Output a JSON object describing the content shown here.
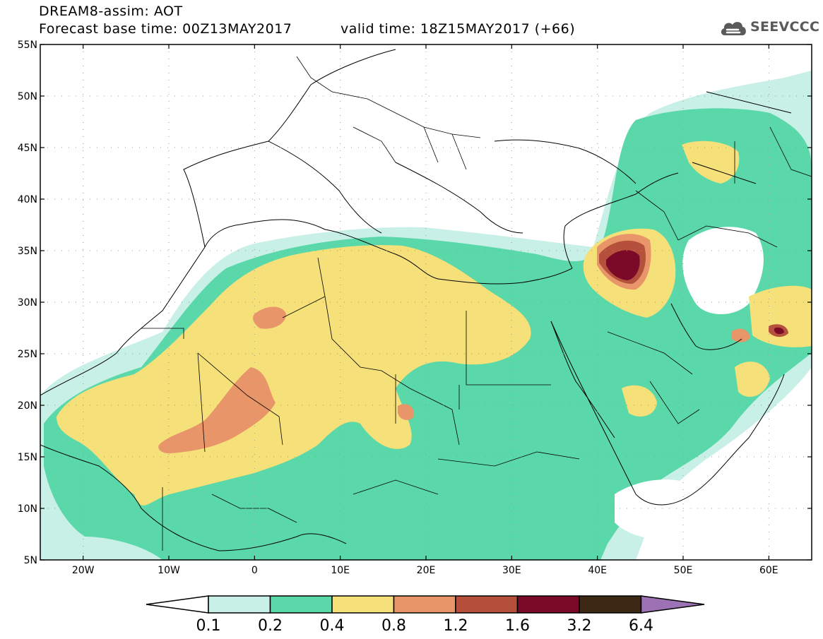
{
  "header": {
    "model": "DREAM8-assim: AOT",
    "base_time": "Forecast base time: 00Z13MAY2017",
    "valid_time": "valid time: 18Z15MAY2017 (+66)"
  },
  "logo": {
    "text": "SEEVCCC",
    "icon": "cloud-icon"
  },
  "map": {
    "lon_range": [
      -25,
      65
    ],
    "lat_range": [
      5,
      55
    ],
    "lon_ticks": [
      {
        "v": -20,
        "label": "20W"
      },
      {
        "v": -10,
        "label": "10W"
      },
      {
        "v": 0,
        "label": "0"
      },
      {
        "v": 10,
        "label": "10E"
      },
      {
        "v": 20,
        "label": "20E"
      },
      {
        "v": 30,
        "label": "30E"
      },
      {
        "v": 40,
        "label": "40E"
      },
      {
        "v": 50,
        "label": "50E"
      },
      {
        "v": 60,
        "label": "60E"
      }
    ],
    "lat_ticks": [
      {
        "v": 55,
        "label": "55N"
      },
      {
        "v": 50,
        "label": "50N"
      },
      {
        "v": 45,
        "label": "45N"
      },
      {
        "v": 40,
        "label": "40N"
      },
      {
        "v": 35,
        "label": "35N"
      },
      {
        "v": 30,
        "label": "30N"
      },
      {
        "v": 25,
        "label": "25N"
      },
      {
        "v": 20,
        "label": "20N"
      },
      {
        "v": 15,
        "label": "15N"
      },
      {
        "v": 10,
        "label": "10N"
      },
      {
        "v": 5,
        "label": "5N"
      }
    ],
    "grid": true
  },
  "colorbar": {
    "labels": [
      "0.1",
      "0.2",
      "0.4",
      "0.8",
      "1.2",
      "1.6",
      "3.2",
      "6.4"
    ],
    "colors": {
      "below": "#ffffff",
      "c1": "#c8f0e6",
      "c2": "#5ad8aa",
      "c3": "#f5e07a",
      "c4": "#e8956a",
      "c5": "#b5503c",
      "c6": "#7a0a28",
      "c7": "#3c2814",
      "above": "#9c72b4"
    }
  }
}
